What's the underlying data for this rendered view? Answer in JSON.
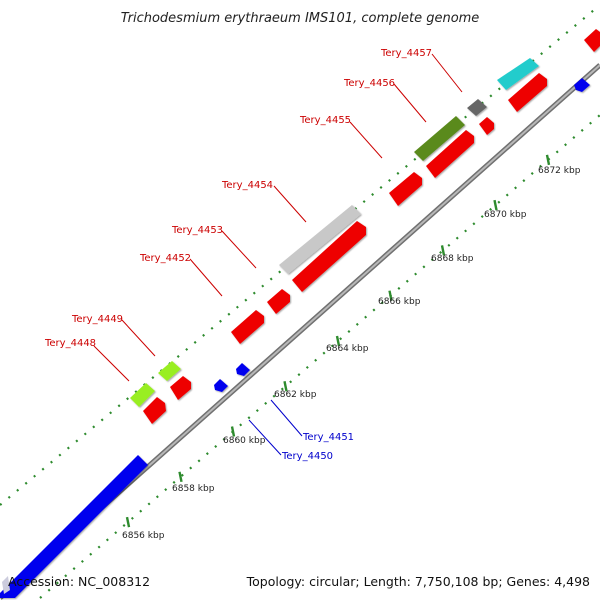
{
  "title": "Trichodesmium erythraeum IMS101, complete genome",
  "footer": {
    "accession": "Accession: NC_008312",
    "summary": "Topology: circular; Length: 7,750,108 bp; Genes: 4,498"
  },
  "colors": {
    "backbone": "#9a9a9a",
    "ticks": "#2e8b2e",
    "forward_label": "#cc0000",
    "reverse_label": "#0000cc"
  },
  "ticks": [
    {
      "label": "6856 kbp"
    },
    {
      "label": "6858 kbp"
    },
    {
      "label": "6860 kbp"
    },
    {
      "label": "6862 kbp"
    },
    {
      "label": "6864 kbp"
    },
    {
      "label": "6866 kbp"
    },
    {
      "label": "6868 kbp"
    },
    {
      "label": "6870 kbp"
    },
    {
      "label": "6872 kbp"
    }
  ],
  "gene_labels": [
    {
      "label": "Tery_4448",
      "strand": "forward"
    },
    {
      "label": "Tery_4449",
      "strand": "forward"
    },
    {
      "label": "Tery_4452",
      "strand": "forward"
    },
    {
      "label": "Tery_4453",
      "strand": "forward"
    },
    {
      "label": "Tery_4454",
      "strand": "forward"
    },
    {
      "label": "Tery_4455",
      "strand": "forward"
    },
    {
      "label": "Tery_4456",
      "strand": "forward"
    },
    {
      "label": "Tery_4457",
      "strand": "forward"
    },
    {
      "label": "Tery_4451",
      "strand": "reverse"
    },
    {
      "label": "Tery_4450",
      "strand": "reverse"
    }
  ]
}
